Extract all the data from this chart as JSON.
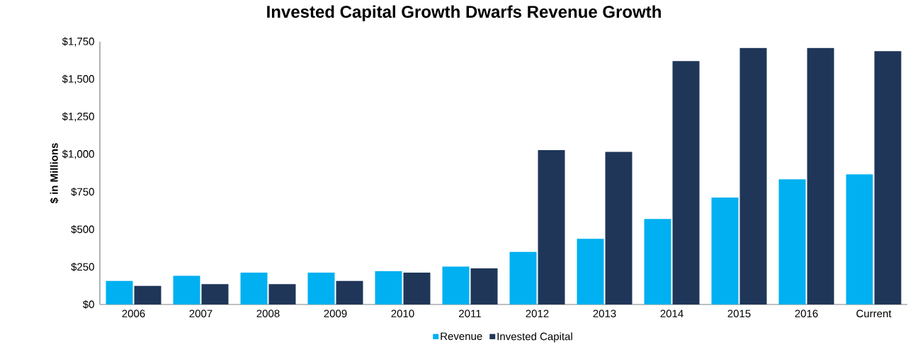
{
  "chart_data": {
    "type": "bar",
    "title": "Invested Capital Growth Dwarfs Revenue Growth",
    "ylabel": "$ in Millions",
    "categories": [
      "2006",
      "2007",
      "2008",
      "2009",
      "2010",
      "2011",
      "2012",
      "2013",
      "2014",
      "2015",
      "2016",
      "Current"
    ],
    "series": [
      {
        "name": "Revenue",
        "color": "#00b0f0",
        "values": [
          157,
          191,
          212,
          212,
          222,
          252,
          350,
          438,
          570,
          712,
          834,
          867
        ]
      },
      {
        "name": "Invested Capital",
        "color": "#1f3659",
        "values": [
          124,
          136,
          136,
          157,
          212,
          240,
          1028,
          1016,
          1622,
          1709,
          1709,
          1687
        ]
      }
    ],
    "ylim": [
      0,
      1750
    ],
    "yticks": [
      {
        "value": 0,
        "label": "$0"
      },
      {
        "value": 250,
        "label": "$250"
      },
      {
        "value": 500,
        "label": "$500"
      },
      {
        "value": 750,
        "label": "$750"
      },
      {
        "value": 1000,
        "label": "$1,000"
      },
      {
        "value": 1250,
        "label": "$1,250"
      },
      {
        "value": 1500,
        "label": "$1,500"
      },
      {
        "value": 1750,
        "label": "$1,750"
      }
    ],
    "grid": false,
    "legend": "bottom"
  }
}
